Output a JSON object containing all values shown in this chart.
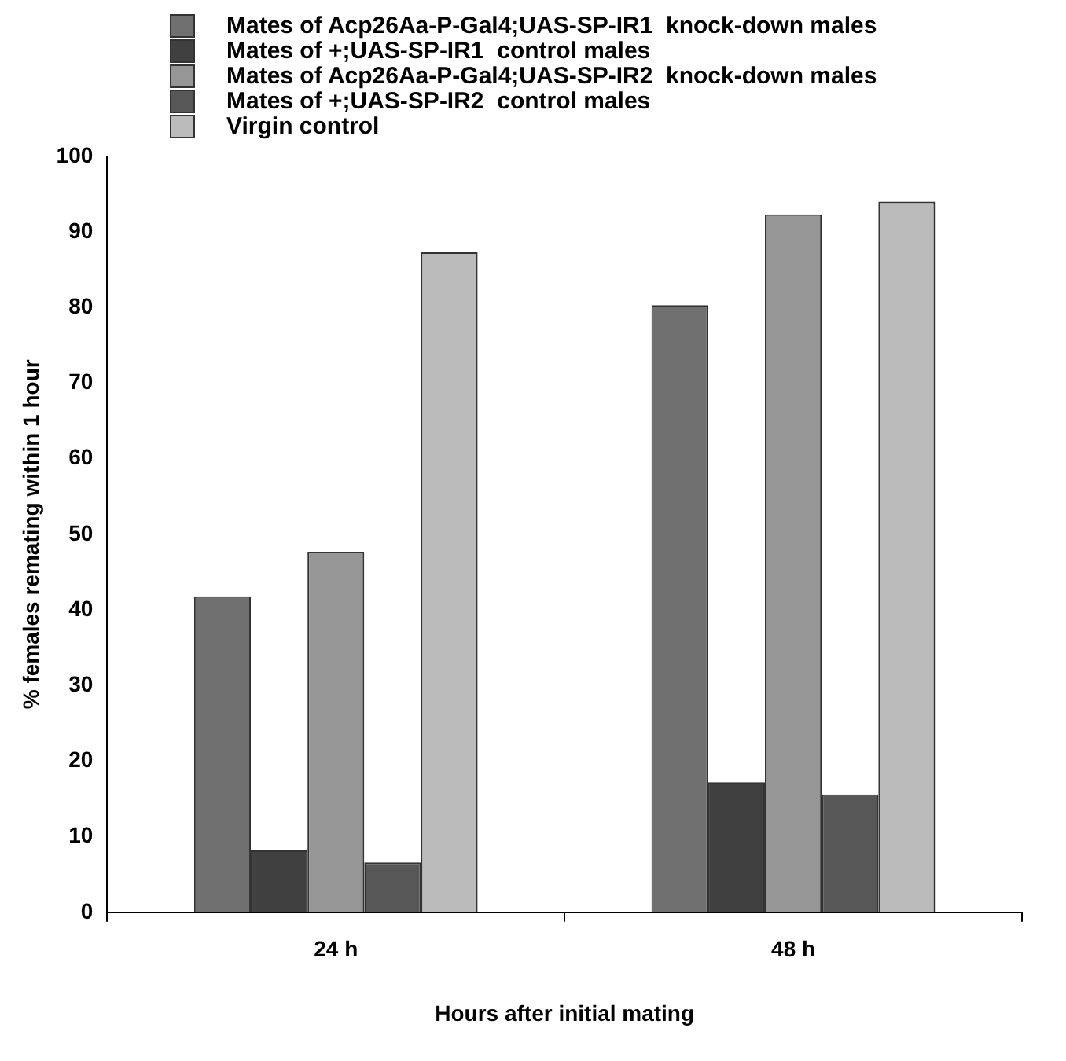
{
  "chart_data": {
    "type": "bar",
    "xlabel": "Hours after initial mating",
    "ylabel": "% females remating within 1 hour",
    "categories": [
      "24 h",
      "48 h"
    ],
    "series": [
      {
        "name": "Mates of Acp26Aa-P-Gal4;UAS-SP-IR1  knock-down males",
        "color": "#707070",
        "values": [
          41.8,
          80.3
        ]
      },
      {
        "name": "Mates of +;UAS-SP-IR1  control males",
        "color": "#404040",
        "values": [
          8.2,
          17.2
        ]
      },
      {
        "name": "Mates of Acp26Aa-P-Gal4;UAS-SP-IR2  knock-down males",
        "color": "#969696",
        "values": [
          47.7,
          92.3
        ]
      },
      {
        "name": "Mates of +;UAS-SP-IR2  control males",
        "color": "#575757",
        "values": [
          6.6,
          15.6
        ]
      },
      {
        "name": "Virgin control",
        "color": "#bbbbbb",
        "values": [
          87.3,
          94.0
        ]
      }
    ],
    "ylim": [
      0,
      100
    ],
    "yticks": [
      0,
      10,
      20,
      30,
      40,
      50,
      60,
      70,
      80,
      90,
      100
    ],
    "grid": false,
    "legend": "top left"
  }
}
